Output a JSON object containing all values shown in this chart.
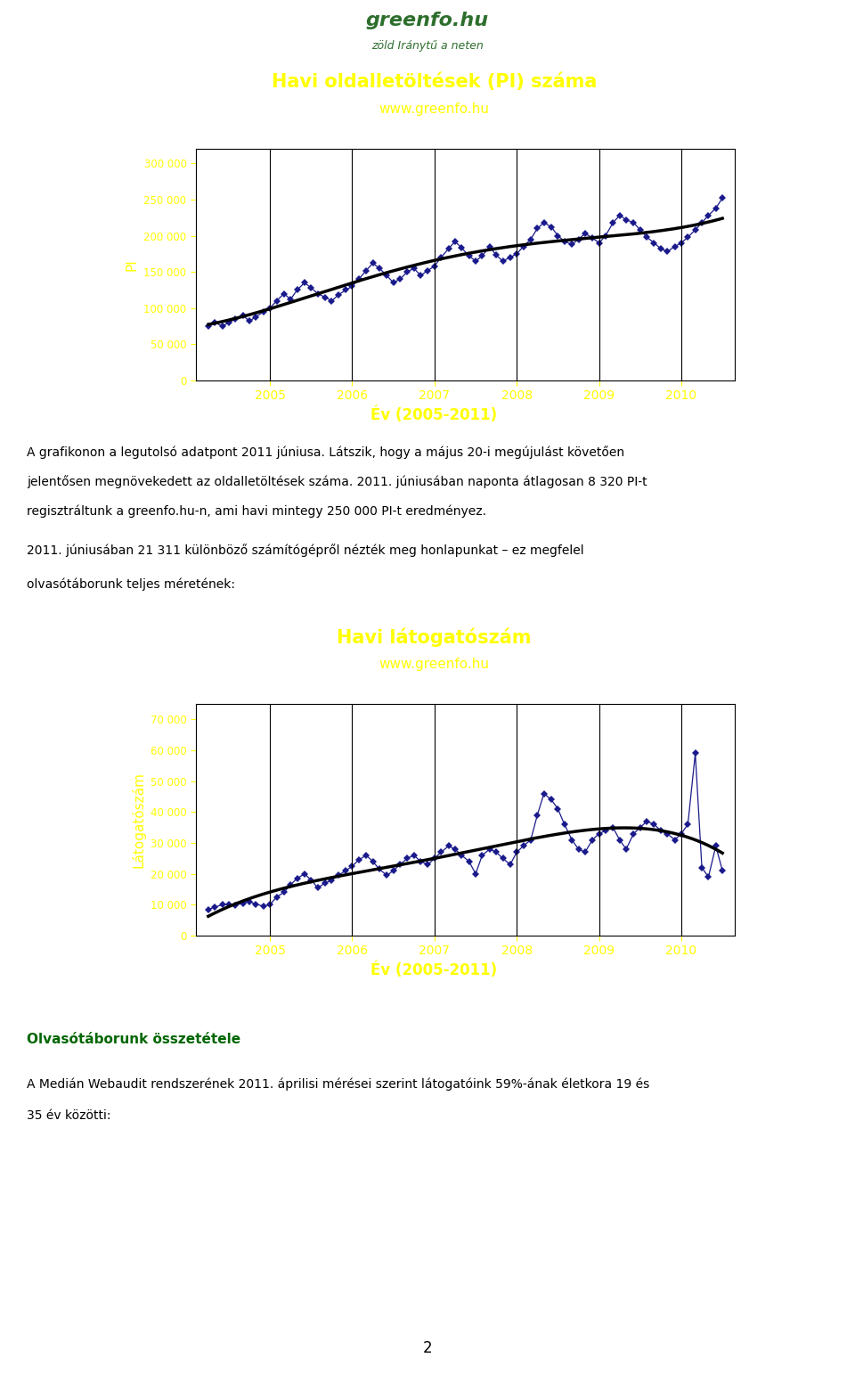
{
  "page_bg": "#ffffff",
  "chart_bg": "#1a7a1a",
  "plot_bg": "#ffffff",
  "line_color": "#1a1a8c",
  "trend_color": "#000000",
  "title_color": "#ffff00",
  "axis_label_color": "#ffff00",
  "tick_color": "#ffff00",
  "chart1": {
    "title": "Havi oldalletöltések (PI) száma",
    "subtitle": "www.greenfo.hu",
    "ylabel": "PI",
    "xlabel": "Év (2005-2011)",
    "ylim": [
      0,
      320000
    ],
    "yticks": [
      0,
      50000,
      100000,
      150000,
      200000,
      250000,
      300000
    ],
    "ytick_labels": [
      "0",
      "50 000",
      "100 000",
      "150 000",
      "200 000",
      "250 000",
      "300 000"
    ],
    "xticks": [
      2005,
      2006,
      2007,
      2008,
      2009,
      2010
    ],
    "data_x": [
      2004.25,
      2004.33,
      2004.42,
      2004.5,
      2004.58,
      2004.67,
      2004.75,
      2004.83,
      2004.92,
      2005.0,
      2005.08,
      2005.17,
      2005.25,
      2005.33,
      2005.42,
      2005.5,
      2005.58,
      2005.67,
      2005.75,
      2005.83,
      2005.92,
      2006.0,
      2006.08,
      2006.17,
      2006.25,
      2006.33,
      2006.42,
      2006.5,
      2006.58,
      2006.67,
      2006.75,
      2006.83,
      2006.92,
      2007.0,
      2007.08,
      2007.17,
      2007.25,
      2007.33,
      2007.42,
      2007.5,
      2007.58,
      2007.67,
      2007.75,
      2007.83,
      2007.92,
      2008.0,
      2008.08,
      2008.17,
      2008.25,
      2008.33,
      2008.42,
      2008.5,
      2008.58,
      2008.67,
      2008.75,
      2008.83,
      2008.92,
      2009.0,
      2009.08,
      2009.17,
      2009.25,
      2009.33,
      2009.42,
      2009.5,
      2009.58,
      2009.67,
      2009.75,
      2009.83,
      2009.92,
      2010.0,
      2010.08,
      2010.17,
      2010.25,
      2010.33,
      2010.42,
      2010.5
    ],
    "data_y": [
      75000,
      80000,
      75000,
      80000,
      85000,
      90000,
      82000,
      88000,
      95000,
      100000,
      110000,
      120000,
      112000,
      125000,
      135000,
      128000,
      120000,
      115000,
      110000,
      118000,
      125000,
      130000,
      140000,
      152000,
      162000,
      155000,
      145000,
      135000,
      140000,
      150000,
      155000,
      145000,
      152000,
      158000,
      170000,
      182000,
      192000,
      183000,
      172000,
      165000,
      172000,
      185000,
      173000,
      165000,
      170000,
      175000,
      185000,
      195000,
      210000,
      218000,
      212000,
      200000,
      192000,
      188000,
      195000,
      203000,
      197000,
      190000,
      200000,
      218000,
      228000,
      222000,
      218000,
      208000,
      198000,
      190000,
      182000,
      178000,
      185000,
      190000,
      198000,
      208000,
      218000,
      228000,
      238000,
      252000
    ]
  },
  "chart2": {
    "title": "Havi látogatószám",
    "subtitle": "www.greenfo.hu",
    "ylabel": "Látogatószám",
    "xlabel": "Év (2005-2011)",
    "ylim": [
      0,
      75000
    ],
    "yticks": [
      0,
      10000,
      20000,
      30000,
      40000,
      50000,
      60000,
      70000
    ],
    "ytick_labels": [
      "0",
      "10 000",
      "20 000",
      "30 000",
      "40 000",
      "50 000",
      "60 000",
      "70 000"
    ],
    "xticks": [
      2005,
      2006,
      2007,
      2008,
      2009,
      2010
    ],
    "data_x": [
      2004.25,
      2004.33,
      2004.42,
      2004.5,
      2004.58,
      2004.67,
      2004.75,
      2004.83,
      2004.92,
      2005.0,
      2005.08,
      2005.17,
      2005.25,
      2005.33,
      2005.42,
      2005.5,
      2005.58,
      2005.67,
      2005.75,
      2005.83,
      2005.92,
      2006.0,
      2006.08,
      2006.17,
      2006.25,
      2006.33,
      2006.42,
      2006.5,
      2006.58,
      2006.67,
      2006.75,
      2006.83,
      2006.92,
      2007.0,
      2007.08,
      2007.17,
      2007.25,
      2007.33,
      2007.42,
      2007.5,
      2007.58,
      2007.67,
      2007.75,
      2007.83,
      2007.92,
      2008.0,
      2008.08,
      2008.17,
      2008.25,
      2008.33,
      2008.42,
      2008.5,
      2008.58,
      2008.67,
      2008.75,
      2008.83,
      2008.92,
      2009.0,
      2009.08,
      2009.17,
      2009.25,
      2009.33,
      2009.42,
      2009.5,
      2009.58,
      2009.67,
      2009.75,
      2009.83,
      2009.92,
      2010.0,
      2010.08,
      2010.17,
      2010.25,
      2010.33,
      2010.42,
      2010.5
    ],
    "data_y": [
      8500,
      9200,
      10000,
      10200,
      9800,
      10500,
      11000,
      10200,
      9500,
      10000,
      12500,
      14000,
      16500,
      18500,
      20000,
      18000,
      15500,
      17000,
      18000,
      19500,
      21000,
      22500,
      24500,
      26000,
      24000,
      21500,
      19500,
      21000,
      23000,
      25000,
      26000,
      24000,
      23000,
      25000,
      27000,
      29000,
      28000,
      26000,
      24000,
      20000,
      26000,
      28000,
      27000,
      25000,
      23000,
      27000,
      29000,
      31000,
      39000,
      46000,
      44000,
      41000,
      36000,
      31000,
      28000,
      27000,
      31000,
      33000,
      34000,
      35000,
      31000,
      28000,
      33000,
      35000,
      37000,
      36000,
      34000,
      33000,
      31000,
      33000,
      36000,
      59000,
      22000,
      19000,
      29000,
      21000
    ]
  },
  "text_block1_line1": "A grafikonon a legutolsó adatpont 2011 júniusa. Látszik, hogy a május 20-i megújulást követően",
  "text_block1_line2": "jelentősen megnövekedett az oldalletöltések száma. 2011. júniusában naponta átlagosan 8 320 PI-t",
  "text_block1_line3": "regisztráltunk a greenfo.hu-n, ami havi mintegy 250 000 PI-t eredményez.",
  "text_block2_line1": "2011. júniusában 21 311 különböző számítógépről nézték meg honlapunkat – ez megfelel",
  "text_block2_line2": "olvasótáborunk teljes méretének:",
  "text_block3_title": "Olvasótáborunk összetétele",
  "text_block3_body1": "A Medián Webaudit rendszerének 2011. áprilisi mérései szerint látogatóink 59%-ának életkora 19 és",
  "text_block3_body2": "35 év közötti:",
  "page_number": "2",
  "logo_text1": "greenfo.hu",
  "logo_text2": "zöld Iránytű a neten"
}
